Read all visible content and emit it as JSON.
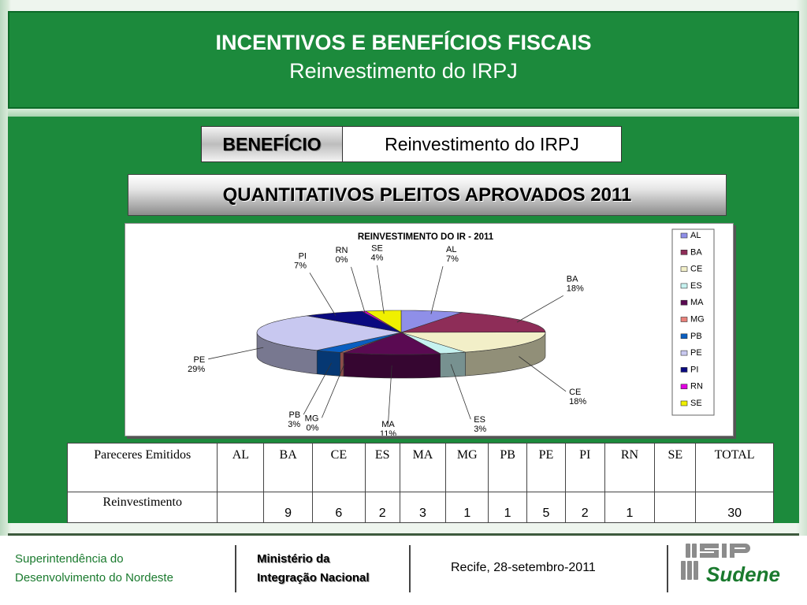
{
  "header": {
    "title": "INCENTIVOS E BENEFÍCIOS FISCAIS",
    "subtitle": "Reinvestimento do IRPJ"
  },
  "beneficio": {
    "label": "BENEFÍCIO",
    "value": "Reinvestimento do IRPJ"
  },
  "quantitativos_title": "QUANTITATIVOS  PLEITOS APROVADOS 2011",
  "chart_data": {
    "type": "pie",
    "title": "REINVESTIMENTO DO IR - 2011",
    "three_d": true,
    "legend_position": "right",
    "slices": [
      {
        "label": "AL",
        "percent": 7,
        "display": "7%",
        "color": "#8f8fe8"
      },
      {
        "label": "BA",
        "percent": 18,
        "display": "18%",
        "color": "#8e2d58"
      },
      {
        "label": "CE",
        "percent": 18,
        "display": "18%",
        "color": "#f2efc8"
      },
      {
        "label": "ES",
        "percent": 3,
        "display": "3%",
        "color": "#c6f2f0"
      },
      {
        "label": "MA",
        "percent": 11,
        "display": "11%",
        "color": "#5a0a52"
      },
      {
        "label": "MG",
        "percent": 0,
        "display": "0%",
        "color": "#e8817a"
      },
      {
        "label": "PB",
        "percent": 3,
        "display": "3%",
        "color": "#0a5ec0"
      },
      {
        "label": "PE",
        "percent": 29,
        "display": "29%",
        "color": "#c8c8f0"
      },
      {
        "label": "PI",
        "percent": 7,
        "display": "7%",
        "color": "#0a0a80"
      },
      {
        "label": "RN",
        "percent": 0,
        "display": "0%",
        "color": "#e000e0"
      },
      {
        "label": "SE",
        "percent": 4,
        "display": "4%",
        "color": "#f0f000"
      }
    ]
  },
  "table": {
    "header_label": "Pareceres Emitidos",
    "columns": [
      "AL",
      "BA",
      "CE",
      "ES",
      "MA",
      "MG",
      "PB",
      "PE",
      "PI",
      "RN",
      "SE",
      "TOTAL"
    ],
    "row_label": "Reinvestimento",
    "values": [
      "",
      "9",
      "6",
      "2",
      "3",
      "1",
      "1",
      "5",
      "2",
      "1",
      "",
      "30"
    ]
  },
  "footer": {
    "org_line1": "Superintendência do",
    "org_line2": "Desenvolvimento do Nordeste",
    "ministry_line1": "Ministério da",
    "ministry_line2": "Integração Nacional",
    "date": "Recife, 28-setembro-2011",
    "logo_text": "Sudene"
  },
  "colors": {
    "green_bg": "#1c8a3c",
    "footer_green": "#1a7a2e"
  }
}
